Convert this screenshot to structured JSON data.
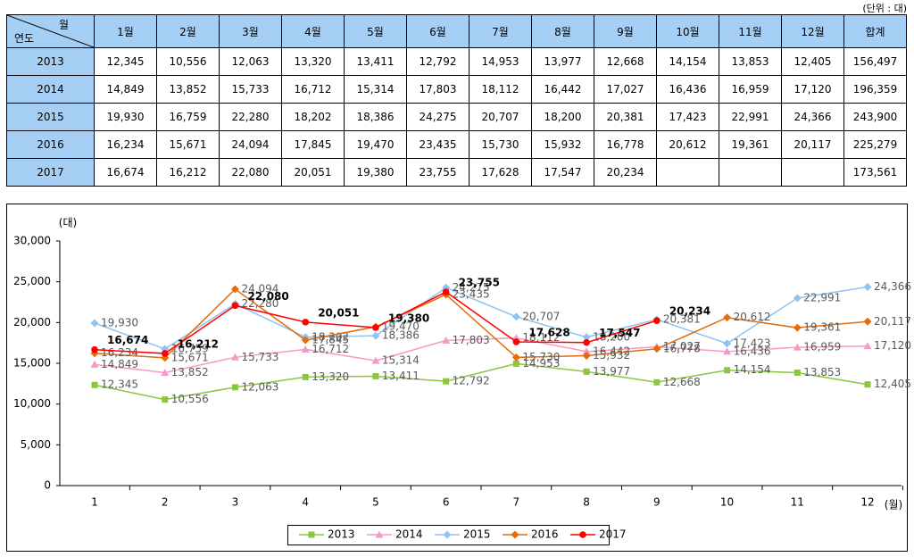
{
  "unit_note": "(단위 : 대)",
  "table": {
    "corner_top": "월",
    "corner_bottom": "연도",
    "header": [
      "1월",
      "2월",
      "3월",
      "4월",
      "5월",
      "6월",
      "7월",
      "8월",
      "9월",
      "10월",
      "11월",
      "12월",
      "합계"
    ],
    "rows": [
      [
        "2013",
        "12,345",
        "10,556",
        "12,063",
        "13,320",
        "13,411",
        "12,792",
        "14,953",
        "13,977",
        "12,668",
        "14,154",
        "13,853",
        "12,405",
        "156,497"
      ],
      [
        "2014",
        "14,849",
        "13,852",
        "15,733",
        "16,712",
        "15,314",
        "17,803",
        "18,112",
        "16,442",
        "17,027",
        "16,436",
        "16,959",
        "17,120",
        "196,359"
      ],
      [
        "2015",
        "19,930",
        "16,759",
        "22,280",
        "18,202",
        "18,386",
        "24,275",
        "20,707",
        "18,200",
        "20,381",
        "17,423",
        "22,991",
        "24,366",
        "243,900"
      ],
      [
        "2016",
        "16,234",
        "15,671",
        "24,094",
        "17,845",
        "19,470",
        "23,435",
        "15,730",
        "15,932",
        "16,778",
        "20,612",
        "19,361",
        "20,117",
        "225,279"
      ],
      [
        "2017",
        "16,674",
        "16,212",
        "22,080",
        "20,051",
        "19,380",
        "23,755",
        "17,628",
        "17,547",
        "20,234",
        null,
        null,
        null,
        "173,561"
      ]
    ]
  },
  "chart_data": {
    "type": "line",
    "y_label": "(대)",
    "x_label": "(월)",
    "categories": [
      "1",
      "2",
      "3",
      "4",
      "5",
      "6",
      "7",
      "8",
      "9",
      "10",
      "11",
      "12"
    ],
    "ylim": [
      0,
      30000
    ],
    "yticks": [
      0,
      {
        "value": 5000,
        "label": "5,000"
      },
      {
        "value": 10000,
        "label": "10,000"
      },
      {
        "value": 15000,
        "label": "15,000"
      },
      {
        "value": 20000,
        "label": "20,000"
      },
      {
        "value": 25000,
        "label": "25,000"
      },
      {
        "value": 30000,
        "label": "30,000"
      }
    ],
    "series": [
      {
        "name": "2013",
        "color": "#8cc63f",
        "marker": "square",
        "values": [
          12345,
          10556,
          12063,
          13320,
          13411,
          12792,
          14953,
          13977,
          12668,
          14154,
          13853,
          12405
        ],
        "value_labels": [
          "12,345",
          "10,556",
          "12,063",
          "13,320",
          "13,411",
          "12,792",
          "14,953",
          "13,977",
          "12,668",
          "14,154",
          "13,853",
          "12,405"
        ]
      },
      {
        "name": "2014",
        "color": "#f49ac6",
        "marker": "triangle",
        "values": [
          14849,
          13852,
          15733,
          16712,
          15314,
          17803,
          18112,
          16442,
          17027,
          16436,
          16959,
          17120
        ],
        "value_labels": [
          "14,849",
          "13,852",
          "15,733",
          "16,712",
          "15,314",
          "17,803",
          "18,112",
          "16,442",
          "17,027",
          "16,436",
          "16,959",
          "17,120"
        ]
      },
      {
        "name": "2015",
        "color": "#8fc3f0",
        "marker": "diamond",
        "values": [
          19930,
          16759,
          22280,
          18202,
          18386,
          24275,
          20707,
          18200,
          20381,
          17423,
          22991,
          24366
        ],
        "value_labels": [
          "19,930",
          "16,759",
          "22,280",
          "18,202",
          "18,386",
          "24,275",
          "20,707",
          "18,200",
          "20,381",
          "17,423",
          "22,991",
          "24,366"
        ]
      },
      {
        "name": "2016",
        "color": "#e46c0a",
        "marker": "diamond",
        "values": [
          16234,
          15671,
          24094,
          17845,
          19470,
          23435,
          15730,
          15932,
          16778,
          20612,
          19361,
          20117
        ],
        "value_labels": [
          "16,234",
          "15,671",
          "24,094",
          "17,845",
          "19,470",
          "23,435",
          "15,730",
          "15,932",
          "16,778",
          "20,612",
          "19,361",
          "20,117"
        ]
      },
      {
        "name": "2017",
        "color": "#ff0000",
        "marker": "circle",
        "values": [
          16674,
          16212,
          22080,
          20051,
          19380,
          23755,
          17628,
          17547,
          20234,
          null,
          null,
          null
        ],
        "value_labels": [
          "16,674",
          "16,212",
          "22,080",
          "20,051",
          "19,380",
          "23,755",
          "17,628",
          "17,547",
          "20,234",
          null,
          null,
          null
        ]
      }
    ]
  }
}
